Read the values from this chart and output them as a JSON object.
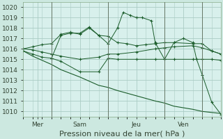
{
  "background_color": "#cce8e0",
  "plot_bg_color": "#d8f0ec",
  "grid_color": "#aaccc4",
  "line_color": "#1a5c2a",
  "vline_color": "#667766",
  "ylim": [
    1009.5,
    1020.5
  ],
  "xlim": [
    0,
    10.5
  ],
  "yticks": [
    1010,
    1011,
    1012,
    1013,
    1014,
    1015,
    1016,
    1017,
    1018,
    1019,
    1020
  ],
  "xlabel": "Pression niveau de la mer( hPa )",
  "xlabel_fontsize": 8,
  "tick_fontsize": 6.5,
  "vlines_x": [
    1.5,
    4.5,
    7.5,
    9.5
  ],
  "xtick_labels": [
    "Mer",
    "Sam",
    "Jeu",
    "Ven"
  ],
  "xtick_positions": [
    0.75,
    3.0,
    6.0,
    8.5
  ],
  "series": [
    {
      "x": [
        0,
        0.5,
        1.0,
        1.5,
        2.0,
        3.0,
        4.0,
        4.5,
        5.0,
        6.0,
        7.0,
        7.5,
        8.0,
        9.0,
        9.5,
        10.0,
        10.5
      ],
      "y": [
        1015.8,
        1015.5,
        1015.2,
        1015.1,
        1014.8,
        1013.8,
        1013.8,
        1015.1,
        1015.0,
        1015.0,
        1015.0,
        1015.0,
        1015.0,
        1015.0,
        1015.0,
        1015.0,
        1014.9
      ],
      "marker": "+"
    },
    {
      "x": [
        0,
        0.5,
        1.0,
        1.5,
        2.0,
        3.0,
        4.0,
        4.5,
        5.0,
        6.0,
        7.0,
        7.5,
        8.0,
        9.0,
        9.5,
        10.0,
        10.5
      ],
      "y": [
        1016.0,
        1015.9,
        1015.7,
        1015.5,
        1015.3,
        1015.0,
        1015.2,
        1015.5,
        1015.5,
        1015.7,
        1016.0,
        1016.1,
        1016.2,
        1016.3,
        1016.1,
        1015.8,
        1015.5
      ],
      "marker": "+"
    },
    {
      "x": [
        0,
        0.5,
        1.0,
        1.5,
        2.0,
        2.5,
        3.0,
        3.5,
        4.0,
        4.5,
        5.0,
        5.5,
        6.0,
        6.5,
        7.0,
        7.5,
        8.0,
        9.0,
        9.5,
        10.0,
        10.5
      ],
      "y": [
        1016.0,
        1016.2,
        1016.4,
        1016.5,
        1017.4,
        1017.6,
        1017.4,
        1018.0,
        1017.3,
        1017.2,
        1016.6,
        1016.5,
        1016.3,
        1016.4,
        1016.5,
        1016.6,
        1016.6,
        1016.5,
        1016.5,
        1015.8,
        1015.5
      ],
      "marker": "+"
    },
    {
      "x": [
        1.5,
        2.0,
        2.5,
        3.0,
        3.5,
        4.0,
        4.5,
        5.0,
        5.3,
        5.7,
        6.0,
        6.3,
        6.8,
        7.0,
        7.5,
        8.0,
        8.5,
        9.0,
        9.2,
        9.5,
        10.0,
        10.5
      ],
      "y": [
        1015.1,
        1017.3,
        1017.5,
        1017.5,
        1018.1,
        1017.3,
        1016.5,
        1018.0,
        1019.5,
        1019.2,
        1019.0,
        1019.0,
        1018.7,
        1016.6,
        1015.0,
        1016.6,
        1017.0,
        1016.6,
        1015.0,
        1013.5,
        1010.9,
        1009.7
      ],
      "marker": "+"
    },
    {
      "x": [
        0,
        0.5,
        1.5,
        2.0,
        3.0,
        4.0,
        4.5,
        5.0,
        6.0,
        7.0,
        7.5,
        8.0,
        9.0,
        9.5,
        10.0,
        10.5
      ],
      "y": [
        1015.8,
        1015.3,
        1014.5,
        1014.0,
        1013.3,
        1012.5,
        1012.3,
        1012.0,
        1011.5,
        1011.0,
        1010.8,
        1010.5,
        1010.2,
        1010.0,
        1009.9,
        1009.8
      ],
      "marker": null
    }
  ]
}
